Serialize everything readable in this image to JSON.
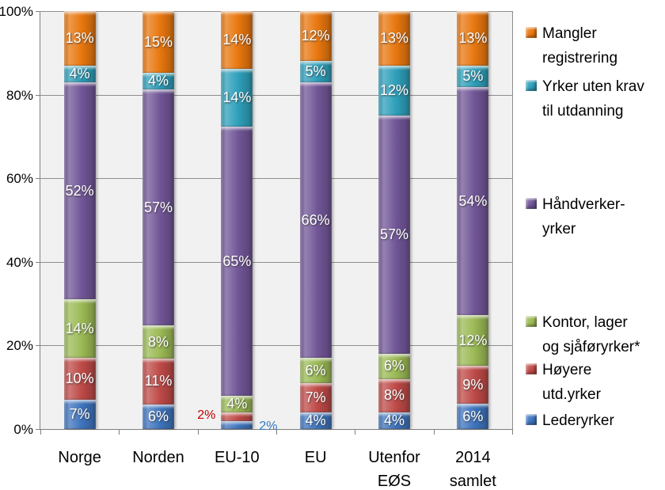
{
  "chart_data": {
    "type": "bar",
    "variant": "stacked-100-percent-column",
    "title": "",
    "xlabel": "",
    "ylabel": "",
    "grid": true,
    "legend_position": "right",
    "plot_background": "#f1f1f1",
    "categories": [
      {
        "lines": [
          "Norge"
        ]
      },
      {
        "lines": [
          "Norden"
        ]
      },
      {
        "lines": [
          "EU-10"
        ]
      },
      {
        "lines": [
          "EU"
        ]
      },
      {
        "lines": [
          "Utenfor",
          "EØS"
        ]
      },
      {
        "lines": [
          "2014",
          "samlet"
        ]
      }
    ],
    "series": [
      {
        "name": "Lederyrker",
        "color": "#3e74be",
        "values": [
          7,
          6,
          2,
          4,
          4,
          6
        ]
      },
      {
        "name": "Høyere utd.yrker",
        "color": "#be4a47",
        "values": [
          10,
          11,
          2,
          7,
          8,
          9
        ]
      },
      {
        "name": "Kontor, lager og sjåføryrker*",
        "color": "#9bba55",
        "values": [
          14,
          8,
          4,
          6,
          6,
          12
        ]
      },
      {
        "name": "Håndverker-yrker",
        "color": "#715697",
        "values": [
          52,
          57,
          65,
          66,
          57,
          54
        ]
      },
      {
        "name": "Yrker uten krav til utdanning",
        "color": "#2e9fba",
        "values": [
          4,
          4,
          14,
          5,
          12,
          5
        ]
      },
      {
        "name": "Mangler registrering",
        "color": "#e8770f",
        "values": [
          13,
          15,
          14,
          12,
          13,
          13
        ]
      }
    ],
    "y_axis": {
      "min": 0,
      "max": 100,
      "step": 20,
      "tick_suffix": "%",
      "tick_labels": [
        "0%",
        "20%",
        "40%",
        "60%",
        "80%",
        "100%"
      ]
    },
    "data_label_suffix": "%",
    "outside_labels": [
      {
        "category_index": 2,
        "series": "Høyere utd.yrker",
        "side": "left",
        "text": "2%",
        "color": "#c00000"
      },
      {
        "category_index": 2,
        "series": "Lederyrker",
        "side": "right",
        "text": "2%",
        "color": "#2e79c4"
      }
    ],
    "legend": [
      {
        "series": "Mangler registrering",
        "lines": [
          "Mangler",
          "registrering"
        ]
      },
      {
        "series": "Yrker uten krav til utdanning",
        "lines": [
          "Yrker uten krav",
          "til utdanning"
        ]
      },
      {
        "series": "Håndverker-yrker",
        "lines": [
          "Håndverker-",
          "yrker"
        ]
      },
      {
        "series": "Kontor, lager og sjåføryrker*",
        "lines": [
          "Kontor, lager",
          "og sjåføryrker*"
        ]
      },
      {
        "series": "Høyere utd.yrker",
        "lines": [
          "Høyere",
          "utd.yrker"
        ]
      },
      {
        "series": "Lederyrker",
        "lines": [
          "Lederyrker"
        ]
      }
    ]
  }
}
